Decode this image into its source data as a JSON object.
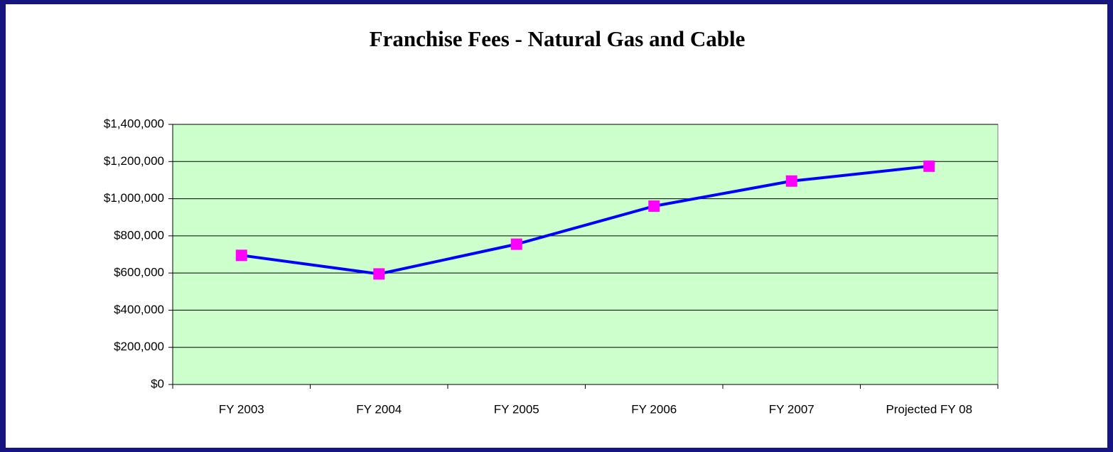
{
  "chart_data": {
    "type": "line",
    "title": "Franchise Fees - Natural Gas and Cable",
    "categories": [
      "FY 2003",
      "FY 2004",
      "FY 2005",
      "FY 2006",
      "FY 2007",
      "Projected FY 08"
    ],
    "series": [
      {
        "name": "Franchise Fees",
        "color": "#0000ff",
        "marker_color": "#ff00ff",
        "values": [
          695000,
          595000,
          755000,
          960000,
          1095000,
          1175000
        ]
      }
    ],
    "ylim": [
      0,
      1400000
    ],
    "yticks": [
      {
        "value": 0,
        "label": "$0"
      },
      {
        "value": 200000,
        "label": "$200,000"
      },
      {
        "value": 400000,
        "label": "$400,000"
      },
      {
        "value": 600000,
        "label": "$600,000"
      },
      {
        "value": 800000,
        "label": "$800,000"
      },
      {
        "value": 1000000,
        "label": "$1,000,000"
      },
      {
        "value": 1200000,
        "label": "$1,200,000"
      },
      {
        "value": 1400000,
        "label": "$1,400,000"
      }
    ],
    "grid": true,
    "plot_background": "#ccffcc"
  }
}
